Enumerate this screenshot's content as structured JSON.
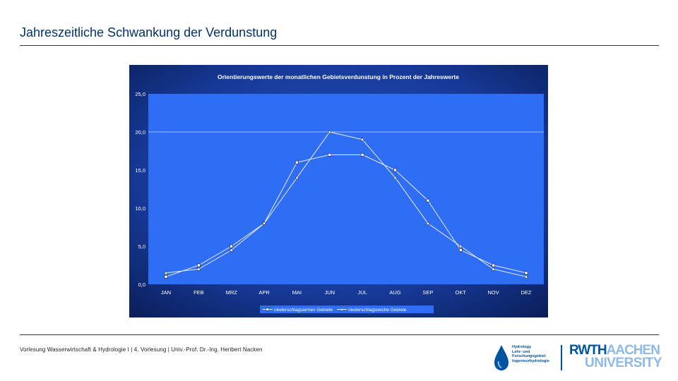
{
  "slide": {
    "title": "Jahreszeitliche Schwankung der Verdunstung",
    "footer": "Vorlesung Wasserwirtschaft & Hydrologie I | 4. Vorlesung | Univ.-Prof. Dr.-Ing. Heribert Nacken"
  },
  "logos": {
    "hydrology_text": [
      "Hydrology",
      "Lehr- und",
      "Forschungsgebiet",
      "Ingenieurhydrologie"
    ],
    "rwth_bold": "RWTH",
    "rwth_rest": "AACHEN",
    "university": "UNIVERSITY",
    "icon": "water-drop-icon"
  },
  "colors": {
    "plot_background": "#2f6df5",
    "frame_background": "#0a1d57",
    "series_line": "#e8eefc",
    "slide_title": "#00336b",
    "logo_blue": "#00539f"
  },
  "chart_data": {
    "type": "line",
    "title": "Orientierungswerte der monatlichen Gebietsverdunstung in Prozent der Jahreswerte",
    "categories": [
      "JAN",
      "FEB",
      "MRZ",
      "APR",
      "MAI",
      "JUN",
      "JUL",
      "AUG",
      "SEP",
      "OKT",
      "NOV",
      "DEZ"
    ],
    "series": [
      {
        "name": "niederschlagsarmen Gebiete",
        "marker": "square",
        "values": [
          1.0,
          2.5,
          5.0,
          8.0,
          16.0,
          17.0,
          17.0,
          15.0,
          11.0,
          4.5,
          2.5,
          1.5
        ]
      },
      {
        "name": "niederschlagsreiche Gebiete",
        "marker": "triangle",
        "values": [
          1.5,
          2.0,
          4.5,
          8.0,
          14.0,
          20.0,
          19.0,
          14.0,
          8.0,
          5.0,
          2.0,
          1.0
        ]
      }
    ],
    "yticks": [
      "0,0",
      "5,0",
      "10,0",
      "15,0",
      "20,0",
      "25,0"
    ],
    "ylim": [
      0,
      25
    ],
    "grid": "horizontal line at 20",
    "legend_position": "bottom"
  }
}
